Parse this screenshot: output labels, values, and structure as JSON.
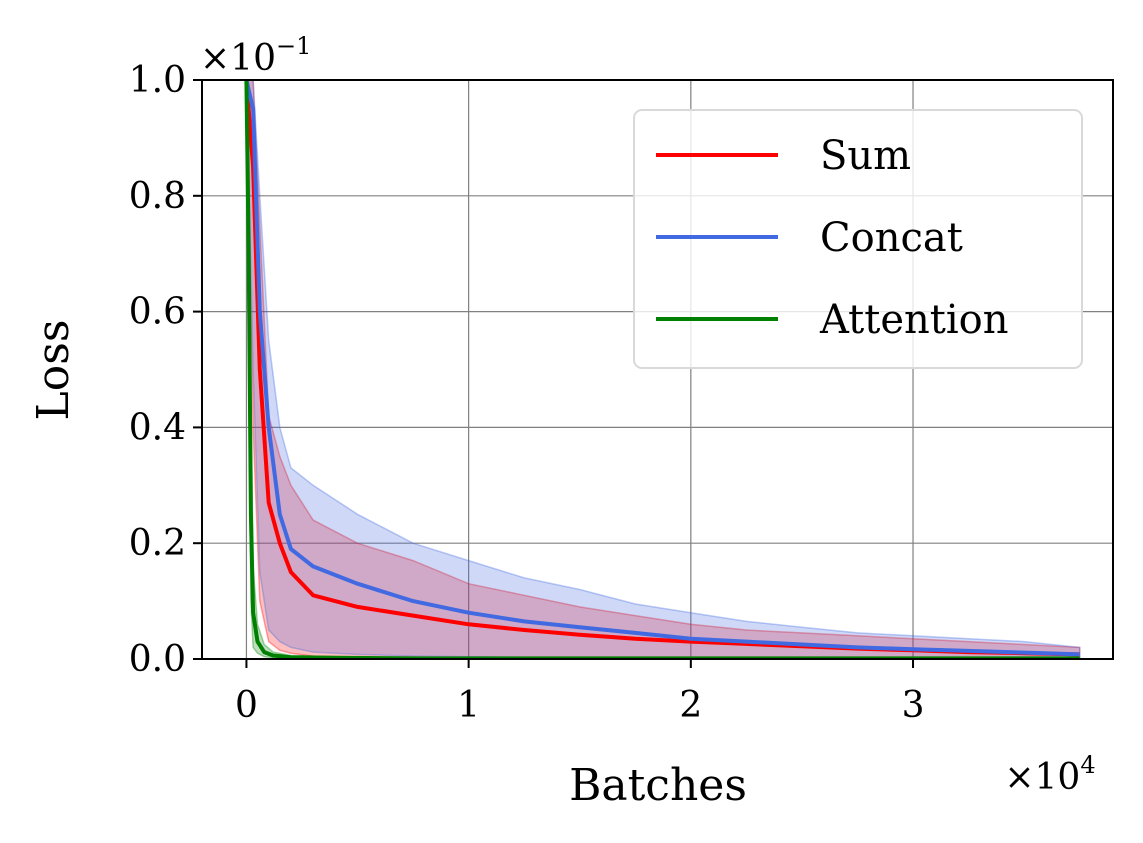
{
  "chart_data": {
    "type": "line",
    "xlabel": "Batches",
    "ylabel": "Loss",
    "x_multiplier": "×10",
    "x_multiplier_exp": "4",
    "y_multiplier": "×10",
    "y_multiplier_exp": "−1",
    "xlim": [
      -0.2,
      3.9
    ],
    "ylim": [
      0.0,
      1.0
    ],
    "x_ticks": [
      0,
      1,
      2,
      3
    ],
    "x_tick_labels": [
      "0",
      "1",
      "2",
      "3"
    ],
    "y_ticks": [
      0.0,
      0.2,
      0.4,
      0.6,
      0.8,
      1.0
    ],
    "y_tick_labels": [
      "0.0",
      "0.2",
      "0.4",
      "0.6",
      "0.8",
      "1.0"
    ],
    "grid": true,
    "legend_position": "top-right",
    "series": [
      {
        "name": "Sum",
        "color": "#ff0000",
        "x": [
          0.0,
          0.03,
          0.06,
          0.1,
          0.15,
          0.2,
          0.3,
          0.5,
          0.75,
          1.0,
          1.25,
          1.5,
          1.75,
          2.0,
          2.25,
          2.5,
          2.75,
          3.0,
          3.25,
          3.5,
          3.75
        ],
        "mean": [
          1.0,
          0.85,
          0.5,
          0.27,
          0.2,
          0.15,
          0.11,
          0.09,
          0.075,
          0.06,
          0.05,
          0.042,
          0.035,
          0.03,
          0.026,
          0.022,
          0.018,
          0.015,
          0.012,
          0.01,
          0.008
        ],
        "upper": [
          1.0,
          1.0,
          0.75,
          0.42,
          0.35,
          0.3,
          0.24,
          0.2,
          0.17,
          0.13,
          0.11,
          0.09,
          0.075,
          0.06,
          0.05,
          0.045,
          0.04,
          0.035,
          0.03,
          0.025,
          0.02
        ],
        "lower": [
          1.0,
          0.4,
          0.1,
          0.03,
          0.015,
          0.01,
          0.005,
          0.003,
          0.002,
          0.002,
          0.001,
          0.001,
          0.001,
          0.0,
          0.0,
          0.0,
          0.0,
          0.0,
          0.0,
          0.0,
          0.0
        ]
      },
      {
        "name": "Concat",
        "color": "#4169e1",
        "x": [
          0.0,
          0.03,
          0.06,
          0.1,
          0.15,
          0.2,
          0.3,
          0.5,
          0.75,
          1.0,
          1.25,
          1.5,
          1.75,
          2.0,
          2.25,
          2.5,
          2.75,
          3.0,
          3.25,
          3.5,
          3.75
        ],
        "mean": [
          1.0,
          0.95,
          0.6,
          0.4,
          0.25,
          0.19,
          0.16,
          0.13,
          0.1,
          0.08,
          0.065,
          0.055,
          0.045,
          0.035,
          0.03,
          0.025,
          0.02,
          0.017,
          0.014,
          0.011,
          0.008
        ],
        "upper": [
          1.0,
          1.0,
          0.8,
          0.55,
          0.4,
          0.33,
          0.3,
          0.25,
          0.2,
          0.17,
          0.14,
          0.12,
          0.095,
          0.08,
          0.065,
          0.055,
          0.045,
          0.04,
          0.035,
          0.03,
          0.02
        ],
        "lower": [
          1.0,
          0.5,
          0.15,
          0.05,
          0.03,
          0.02,
          0.012,
          0.008,
          0.005,
          0.004,
          0.003,
          0.002,
          0.002,
          0.001,
          0.001,
          0.0,
          0.0,
          0.0,
          0.0,
          0.0,
          0.0
        ]
      },
      {
        "name": "Attention",
        "color": "#008000",
        "x": [
          0.0,
          0.01,
          0.02,
          0.03,
          0.05,
          0.08,
          0.12,
          0.2,
          0.4,
          0.8,
          1.5,
          2.5,
          3.75
        ],
        "mean": [
          1.0,
          0.7,
          0.25,
          0.08,
          0.03,
          0.012,
          0.006,
          0.003,
          0.002,
          0.001,
          0.001,
          0.001,
          0.001
        ],
        "upper": [
          1.0,
          0.9,
          0.45,
          0.16,
          0.06,
          0.025,
          0.012,
          0.006,
          0.004,
          0.002,
          0.002,
          0.002,
          0.002
        ],
        "lower": [
          1.0,
          0.5,
          0.1,
          0.02,
          0.01,
          0.004,
          0.002,
          0.001,
          0.0,
          0.0,
          0.0,
          0.0,
          0.0
        ]
      }
    ]
  }
}
